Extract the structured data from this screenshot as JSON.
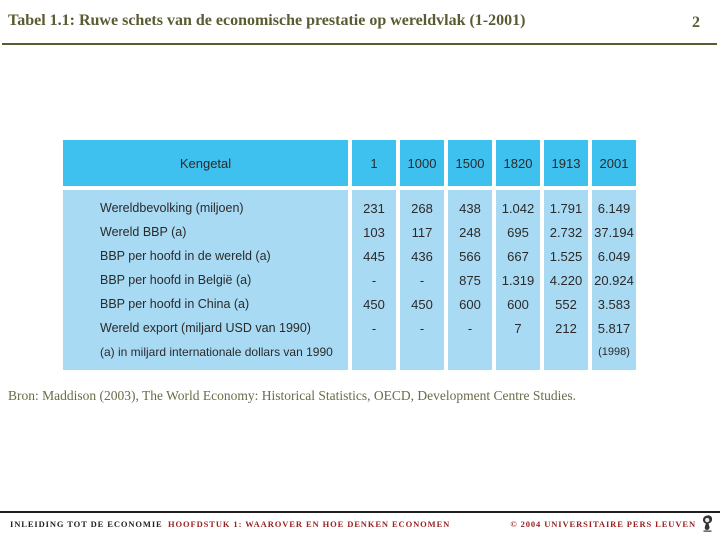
{
  "header": {
    "title": "Tabel 1.1: Ruwe schets van de economische prestatie op wereldvlak (1-2001)",
    "page_number": "2"
  },
  "table": {
    "columns": [
      "Kengetal",
      "1",
      "1000",
      "1500",
      "1820",
      "1913",
      "2001"
    ],
    "rows": [
      {
        "label": "Wereldbevolking (miljoen)",
        "values": [
          "231",
          "268",
          "438",
          "1.042",
          "1.791",
          "6.149"
        ]
      },
      {
        "label": "Wereld BBP (a)",
        "values": [
          "103",
          "117",
          "248",
          "695",
          "2.732",
          "37.194"
        ]
      },
      {
        "label": "BBP per hoofd in de wereld (a)",
        "values": [
          "445",
          "436",
          "566",
          "667",
          "1.525",
          "6.049"
        ]
      },
      {
        "label": "BBP per hoofd in België (a)",
        "values": [
          "-",
          "-",
          "875",
          "1.319",
          "4.220",
          "20.924"
        ]
      },
      {
        "label": "BBP per hoofd in China (a)",
        "values": [
          "450",
          "450",
          "600",
          "600",
          "552",
          "3.583"
        ]
      },
      {
        "label": "Wereld export (miljard USD van 1990)",
        "values": [
          "-",
          "-",
          "-",
          "7",
          "212",
          "5.817"
        ]
      }
    ],
    "footnote": "(a) in miljard internationale dollars van 1990",
    "last_cell_note": "(1998)"
  },
  "source": "Bron: Maddison (2003), The World Economy: Historical Statistics, OECD, Development Centre Studies.",
  "footer": {
    "course": "INLEIDING TOT DE ECONOMIE",
    "chapter": "HOOFDSTUK 1: WAAROVER EN HOE DENKEN ECONOMEN",
    "copyright": "© 2004 UNIVERSITAIRE PERS LEUVEN"
  },
  "colors": {
    "header_cyan": "#3FC1EF",
    "body_blue": "#A9DAF3",
    "olive": "#5B5B33",
    "source_olive": "#6B6B47",
    "footer_red": "#992121",
    "ink": "#1F1F1F",
    "table_ink": "#2A2A2A"
  }
}
